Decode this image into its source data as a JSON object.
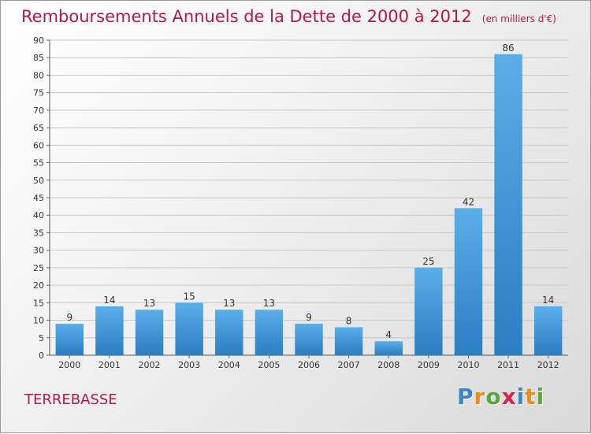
{
  "title": "Remboursements Annuels de la Dette de 2000 à 2012",
  "unit_note": "(en milliers d'€)",
  "commune": "TERREBASSE",
  "logo": {
    "text": "Proxiti",
    "letter_colors": [
      "#3a86c8",
      "#f08a1c",
      "#58a83c",
      "#d8234e",
      "#3a86c8",
      "#f08a1c",
      "#58a83c"
    ]
  },
  "colors": {
    "accent": "#b5174f",
    "bar_top": "#5aaee8",
    "bar_bottom": "#2a7ec2",
    "grid": "#c8c8c8"
  },
  "chart_data": {
    "type": "bar",
    "categories": [
      "2000",
      "2001",
      "2002",
      "2003",
      "2004",
      "2005",
      "2006",
      "2007",
      "2008",
      "2009",
      "2010",
      "2011",
      "2012"
    ],
    "values": [
      9,
      14,
      13,
      15,
      13,
      13,
      9,
      8,
      4,
      25,
      42,
      86,
      14
    ],
    "ylim": [
      0,
      90
    ],
    "yticks": [
      0,
      5,
      10,
      15,
      20,
      25,
      30,
      35,
      40,
      45,
      50,
      55,
      60,
      65,
      70,
      75,
      80,
      85,
      90
    ],
    "grid": true,
    "data_labels": true
  }
}
